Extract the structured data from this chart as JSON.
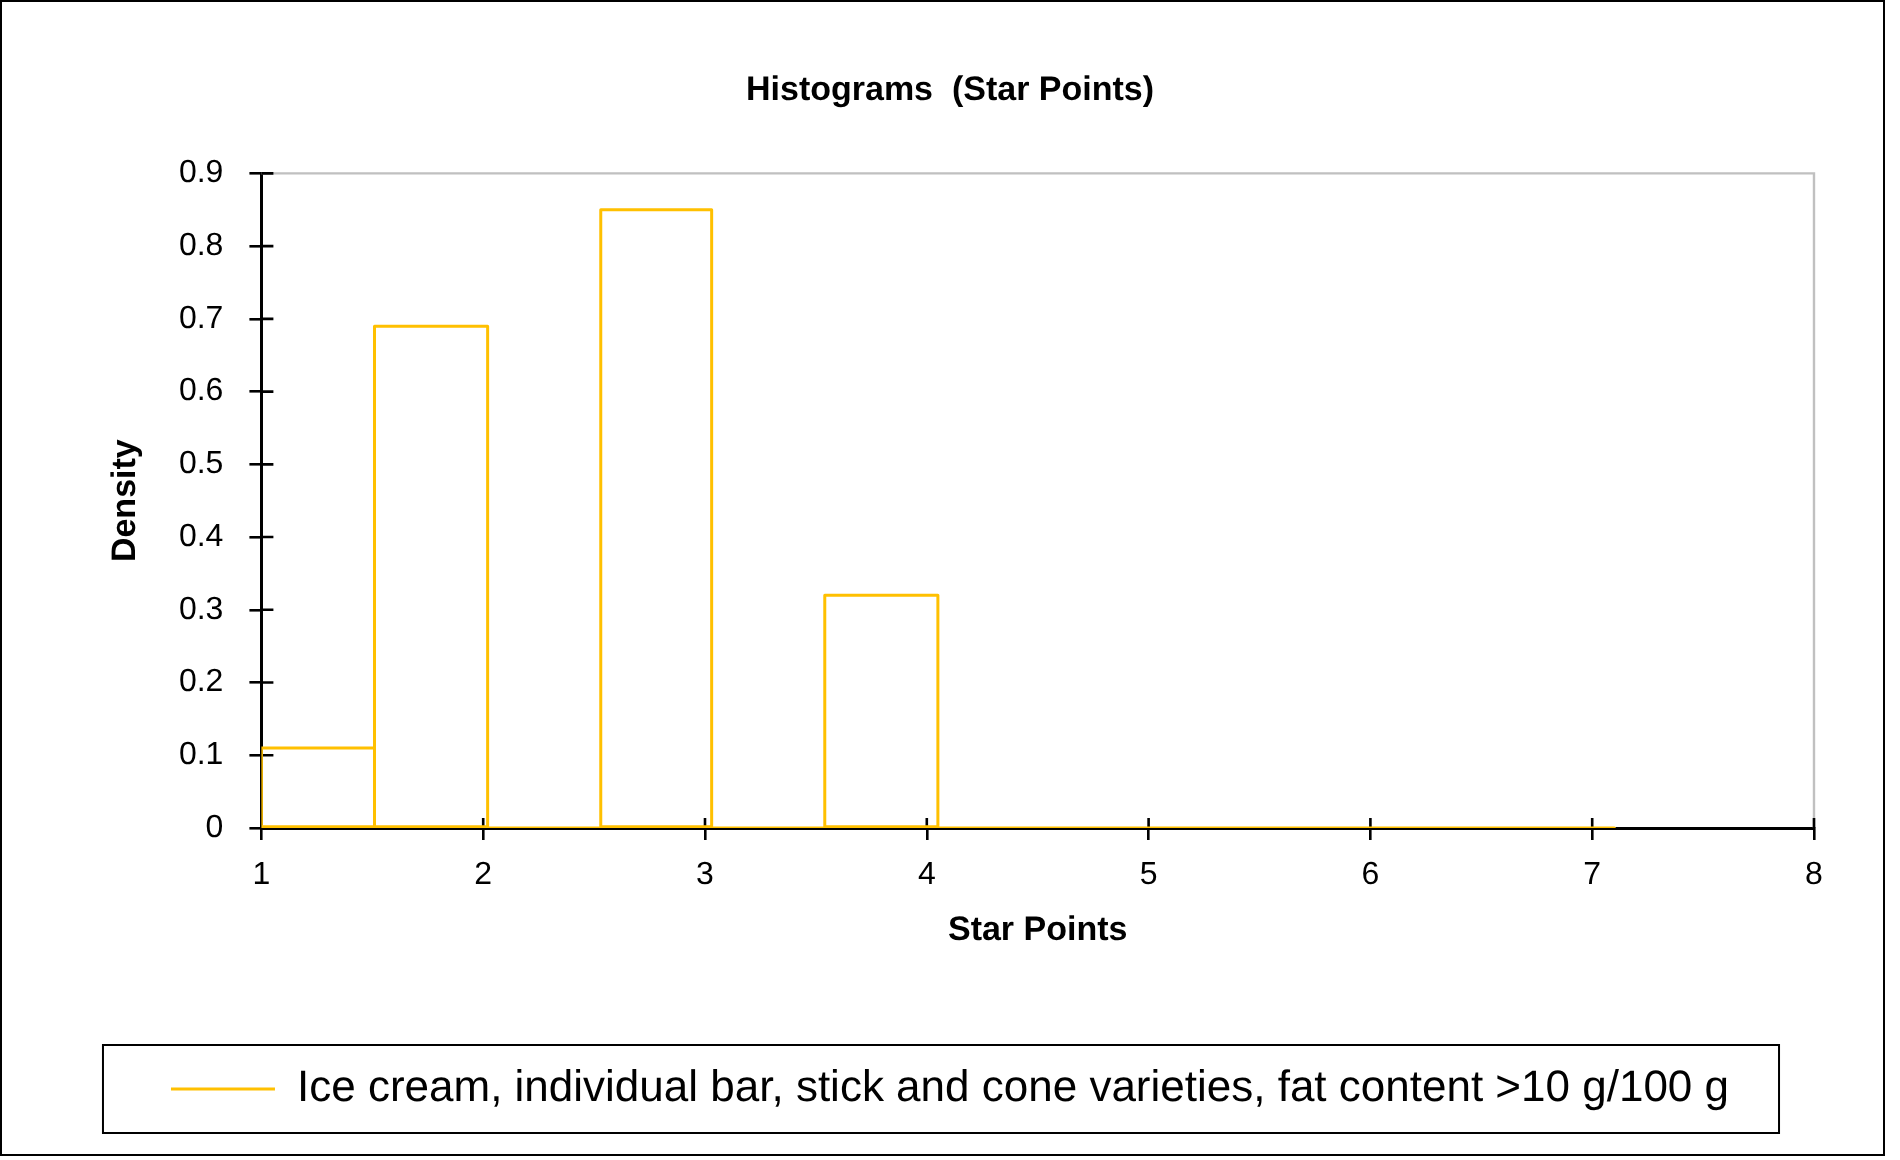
{
  "chart_data": {
    "type": "histogram",
    "title": "Histograms  (Star Points)",
    "xlabel": "Star Points",
    "ylabel": "Density",
    "bins": [
      1,
      1.51,
      2.02,
      2.53,
      3.03,
      3.54,
      4.05,
      7.1
    ],
    "series": [
      {
        "name": "Ice cream, individual bar, stick and cone varieties, fat content >10 g/100 g",
        "color": "#ffc000",
        "values": [
          0.11,
          0.69,
          0,
          0.85,
          0,
          0.32,
          0
        ]
      }
    ],
    "xlim": [
      1,
      8
    ],
    "xticks": [
      1,
      2,
      3,
      4,
      5,
      6,
      7,
      8
    ],
    "ylim": [
      0,
      0.9
    ],
    "yticks": [
      0,
      0.1,
      0.2,
      0.3,
      0.4,
      0.5,
      0.6,
      0.7,
      0.8,
      0.9
    ],
    "grid": false,
    "legend": "bottom"
  }
}
